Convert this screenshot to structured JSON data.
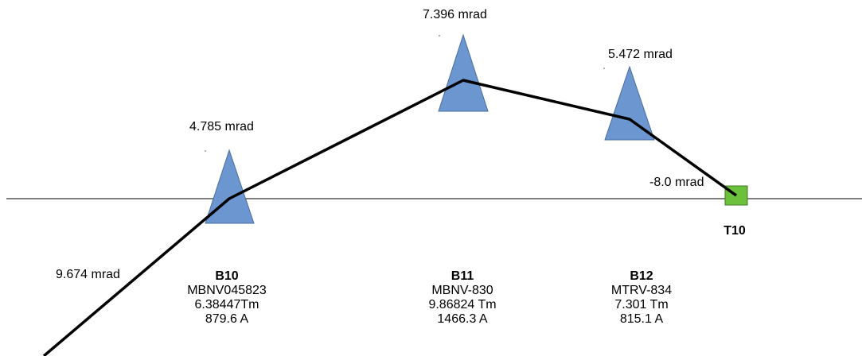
{
  "magnets": [
    {
      "name": "B10",
      "type": "MBNV045823",
      "field": "6.38447Tm",
      "current": "879.6 A",
      "angle": "4.785 mrad"
    },
    {
      "name": "B11",
      "type": "MBNV-830",
      "field": "9.86824 Tm",
      "current": "1466.3 A",
      "angle": "7.396 mrad"
    },
    {
      "name": "B12",
      "type": "MTRV-834",
      "field": "7.301 Tm",
      "current": "815.1 A",
      "angle": "5.472 mrad"
    }
  ],
  "incoming_angle": "9.674 mrad",
  "target": {
    "name": "T10",
    "angle": "-8.0 mrad"
  },
  "colors": {
    "magnet_fill": "#6b96cf",
    "magnet_stroke": "#4a6d9c",
    "target_fill": "#6cc13c",
    "target_stroke": "#3e7a22",
    "beam": "#000000",
    "reference_line": "#000000"
  }
}
